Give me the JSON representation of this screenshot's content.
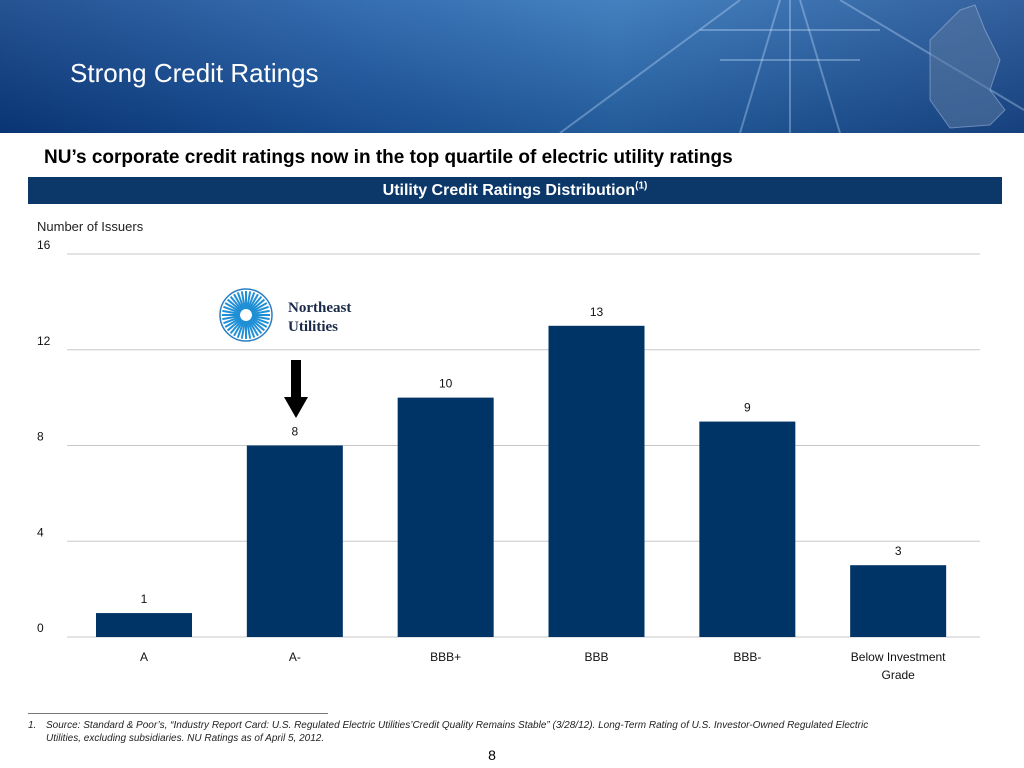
{
  "header": {
    "title": "Strong Credit Ratings"
  },
  "subtitle": "NU’s corporate credit ratings now in the top quartile of electric utility ratings",
  "banner": {
    "title": "Utility Credit Ratings Distribution",
    "superscript": "(1)"
  },
  "logo": {
    "line1": "Northeast",
    "line2": "Utilities",
    "icon": "northeast-utilities-logo-icon",
    "points_to": "A-"
  },
  "chart_data": {
    "type": "bar",
    "ylabel": "Number of Issuers",
    "xlabel": "",
    "categories": [
      "A",
      "A-",
      "BBB+",
      "BBB",
      "BBB-",
      "Below Investment Grade"
    ],
    "category_lines": [
      [
        "A"
      ],
      [
        "A-"
      ],
      [
        "BBB+"
      ],
      [
        "BBB"
      ],
      [
        "BBB-"
      ],
      [
        "Below Investment",
        "Grade"
      ]
    ],
    "values": [
      1,
      8,
      10,
      13,
      9,
      3
    ],
    "ylim": [
      0,
      16
    ],
    "yticks": [
      0,
      4,
      8,
      12,
      16
    ],
    "grid": true,
    "bar_color": "#003466",
    "data_labels": true
  },
  "footnote": {
    "number": "1.",
    "line1": "Source: Standard & Poor’s, “Industry Report Card: U.S. Regulated Electric Utilities’Credit Quality Remains Stable” (3/28/12).  Long-Term Rating of U.S. Investor-Owned Regulated Electric",
    "line2": "Utilities, excluding subsidiaries.   NU Ratings as of April 5, 2012."
  },
  "page_number": "8"
}
